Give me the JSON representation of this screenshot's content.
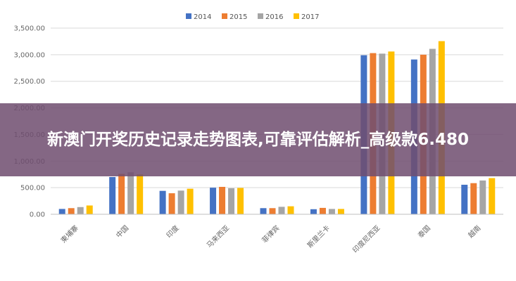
{
  "banner": {
    "text": "新澳门开奖历史记录走势图表,可靠评估解析_高级款6.480"
  },
  "chart_data": {
    "type": "bar",
    "legend_position": "top-center",
    "grid": true,
    "ylim": [
      0,
      3500
    ],
    "yticks": [
      "0.00",
      "500.00",
      "1,000.00",
      "1,500.00",
      "2,000.00",
      "2,500.00",
      "3,000.00",
      "3,500.00"
    ],
    "ytick_values": [
      0,
      500,
      1000,
      1500,
      2000,
      2500,
      3000,
      3500
    ],
    "categories": [
      "柬埔寨",
      "中国",
      "印度",
      "马来西亚",
      "菲律宾",
      "斯里兰卡",
      "印度尼西亚",
      "泰国",
      "越南"
    ],
    "series": [
      {
        "name": "2014",
        "color": "#4472c4",
        "values": [
          100,
          700,
          440,
          500,
          115,
          95,
          2990,
          2910,
          555
        ]
      },
      {
        "name": "2015",
        "color": "#ed7d31",
        "values": [
          115,
          760,
          395,
          515,
          115,
          120,
          3030,
          3000,
          585
        ]
      },
      {
        "name": "2016",
        "color": "#a5a5a5",
        "values": [
          135,
          790,
          445,
          490,
          140,
          100,
          3020,
          3110,
          635
        ]
      },
      {
        "name": "2017",
        "color": "#ffc000",
        "values": [
          165,
          750,
          480,
          495,
          150,
          100,
          3060,
          3255,
          680
        ]
      }
    ]
  }
}
